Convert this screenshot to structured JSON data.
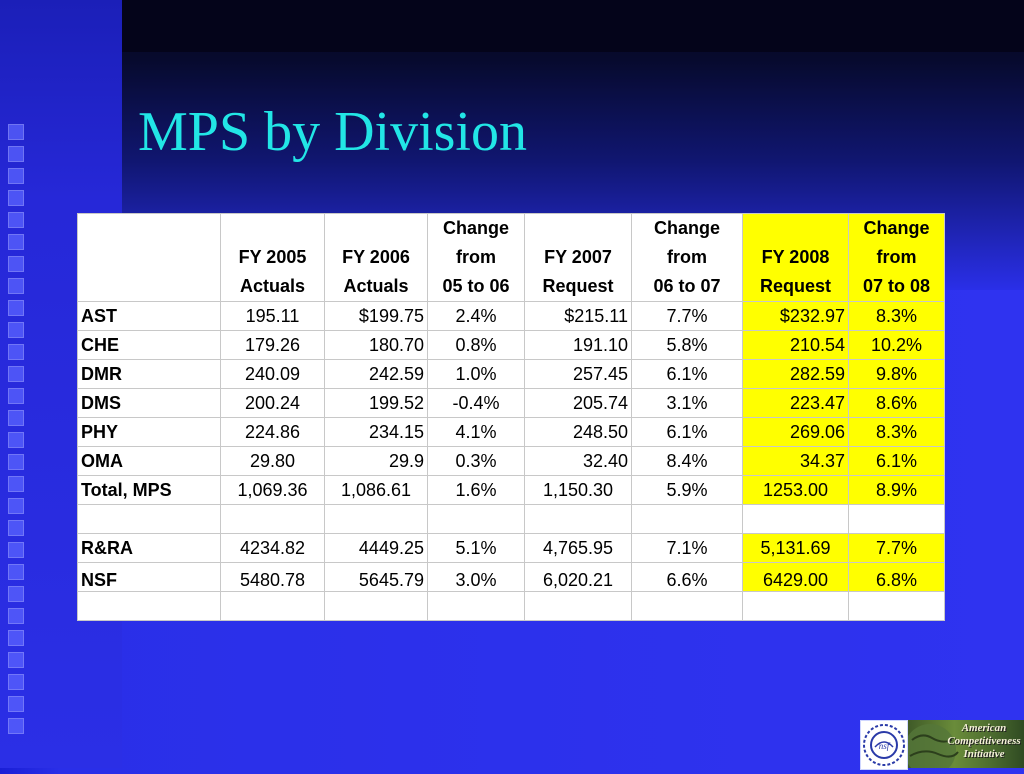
{
  "slide": {
    "title": "MPS by Division"
  },
  "table": {
    "headers": [
      {
        "line1": "",
        "line2": "",
        "line3": ""
      },
      {
        "line1": "",
        "line2": "FY 2005",
        "line3": "Actuals"
      },
      {
        "line1": "",
        "line2": "FY 2006",
        "line3": "Actuals"
      },
      {
        "line1": "Change",
        "line2": "from",
        "line3": "05 to 06"
      },
      {
        "line1": "",
        "line2": "FY 2007",
        "line3": "Request"
      },
      {
        "line1": "Change",
        "line2": "from",
        "line3": "06 to 07"
      },
      {
        "line1": "",
        "line2": "FY 2008",
        "line3": "Request"
      },
      {
        "line1": "Change",
        "line2": "from",
        "line3": "07 to 08"
      }
    ],
    "rows": [
      {
        "label": "AST",
        "cells": [
          "195.11",
          "$199.75",
          "2.4%",
          "$215.11",
          "7.7%",
          "$232.97",
          "8.3%"
        ]
      },
      {
        "label": "CHE",
        "cells": [
          "179.26",
          "180.70",
          "0.8%",
          "191.10",
          "5.8%",
          "210.54",
          "10.2%"
        ]
      },
      {
        "label": "DMR",
        "cells": [
          "240.09",
          "242.59",
          "1.0%",
          "257.45",
          "6.1%",
          "282.59",
          "9.8%"
        ]
      },
      {
        "label": "DMS",
        "cells": [
          "200.24",
          "199.52",
          "-0.4%",
          "205.74",
          "3.1%",
          "223.47",
          "8.6%"
        ]
      },
      {
        "label": "PHY",
        "cells": [
          "224.86",
          "234.15",
          "4.1%",
          "248.50",
          "6.1%",
          "269.06",
          "8.3%"
        ]
      },
      {
        "label": "OMA",
        "cells": [
          "29.80",
          "29.9",
          "0.3%",
          "32.40",
          "8.4%",
          "34.37",
          "6.1%"
        ]
      }
    ],
    "total": {
      "label": "Total, MPS",
      "cells": [
        "1,069.36",
        "1,086.61",
        "1.6%",
        "1,150.30",
        "5.9%",
        "1253.00",
        "8.9%"
      ]
    },
    "rra": {
      "label": "R&RA",
      "cells": [
        "4234.82",
        "4449.25",
        "5.1%",
        "4,765.95",
        "7.1%",
        "5,131.69",
        "7.7%"
      ]
    },
    "nsf": {
      "label": "NSF",
      "cells": [
        "5480.78",
        "5645.79",
        "3.0%",
        "6,020.21",
        "6.6%",
        "6429.00",
        "6.8%"
      ]
    }
  },
  "logos": {
    "nsf_logo_icon": "nsf-seal-icon",
    "aci_logo_text": [
      "American",
      "Competitiveness",
      "Initiative"
    ]
  }
}
